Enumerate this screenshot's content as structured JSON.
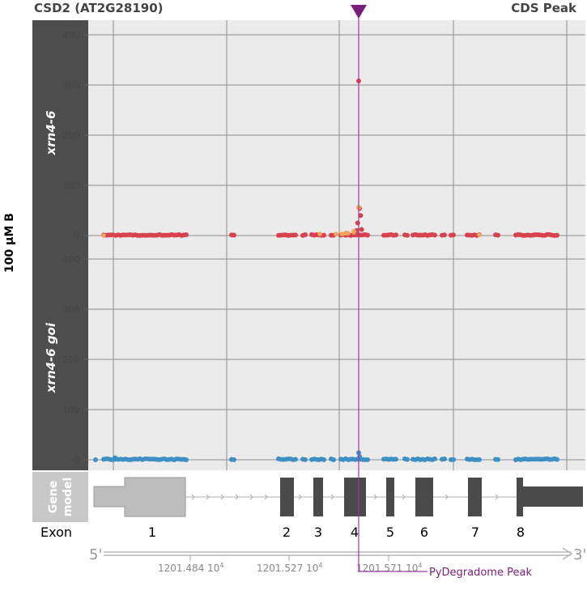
{
  "header": {
    "gene": "CSD2 (AT2G28190)",
    "right_label": "CDS Peak"
  },
  "side_label": "100 μM B",
  "colors": {
    "panel_bg": "#ebebeb",
    "strip_bg": "#4d4d4d",
    "grid": "#8c8c8c",
    "red": "#d7424e",
    "orange": "#f4a35f",
    "blue": "#3d8fc4",
    "peak_line": "#9b3d9b",
    "exon": "#4a4a4a",
    "utr": "#bdbdbd"
  },
  "gene_model": {
    "label_line1": "Gene",
    "label_line2": "model",
    "exon_title": "Exon",
    "exons": [
      "1",
      "2",
      "3",
      "4",
      "5",
      "6",
      "7",
      "8"
    ]
  },
  "axis": {
    "five_prime": "5'",
    "three_prime": "3'",
    "ticks": [
      {
        "main": "1201.484",
        "exp": "10",
        "sup": "4"
      },
      {
        "main": "1201.527",
        "exp": "10",
        "sup": "4"
      },
      {
        "main": "1201.571",
        "exp": "10",
        "sup": "4"
      }
    ]
  },
  "peak_label": "PyDegradome  Peak",
  "chart_data": [
    {
      "type": "scatter",
      "panel": "xrn4-6",
      "ylim": [
        0,
        420
      ],
      "yticks": [
        0,
        100,
        200,
        300,
        400
      ],
      "series": [
        {
          "color": "red",
          "points": [
            [
              301,
              308
            ],
            [
              302,
              54
            ],
            [
              303,
              40
            ],
            [
              300,
              25
            ],
            [
              304,
              12
            ],
            [
              299,
              10
            ]
          ]
        },
        {
          "color": "orange",
          "points": [
            [
              301,
              56
            ],
            [
              296,
              8
            ],
            [
              288,
              5
            ],
            [
              284,
              3
            ]
          ]
        }
      ]
    },
    {
      "type": "scatter",
      "panel": "xrn4-6 goi",
      "ylim": [
        0,
        420
      ],
      "yticks": [
        0,
        100,
        200,
        300,
        400
      ],
      "series": [
        {
          "color": "blue",
          "points": [
            [
              301,
              14
            ],
            [
              302,
              6
            ],
            [
              20,
              4
            ]
          ]
        }
      ]
    }
  ]
}
